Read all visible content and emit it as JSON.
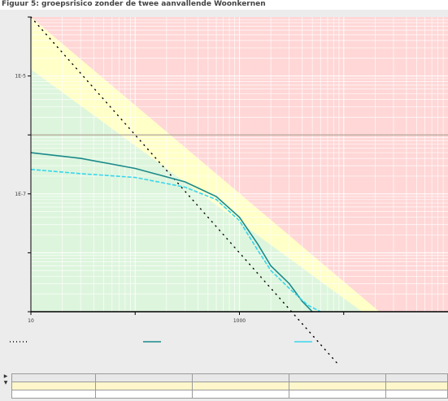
{
  "caption": "Figuur 5: groepsrisico zonder de twee aanvallende Woonkernen",
  "chart_data": {
    "type": "line",
    "title": "",
    "xlabel": "",
    "ylabel": "",
    "xscale": "log",
    "yscale": "log",
    "xlim": [
      1,
      10000
    ],
    "ylim": [
      1e-09,
      0.0001
    ],
    "grid": true,
    "x_ticks": [
      "10",
      "",
      "1000",
      ""
    ],
    "y_ticks": [
      "",
      "1E-5",
      "",
      "1E-7",
      "",
      ""
    ],
    "zones": [
      {
        "name": "green",
        "color": "#ddf5dd"
      },
      {
        "name": "yellow",
        "color": "#ffffc8"
      },
      {
        "name": "red",
        "color": "#ffd7d7"
      }
    ],
    "reference_line": {
      "y": 1e-06,
      "color": "#a89a8a"
    },
    "orientation_line": {
      "color": "#000000",
      "points": [
        [
          1,
          0.0001
        ],
        [
          1000,
          1e-10
        ]
      ]
    },
    "series": [
      {
        "color": "#1a8a8a",
        "points": [
          [
            1,
            5e-07
          ],
          [
            3,
            4e-07
          ],
          [
            10,
            2.7e-07
          ],
          [
            30,
            1.6e-07
          ],
          [
            60,
            9e-08
          ],
          [
            100,
            4e-08
          ],
          [
            150,
            1.4e-08
          ],
          [
            200,
            6e-09
          ],
          [
            300,
            3e-09
          ],
          [
            400,
            1.5e-09
          ],
          [
            500,
            1e-09
          ]
        ]
      },
      {
        "color": "#38d6ec",
        "points": [
          [
            1,
            2.6e-07
          ],
          [
            3,
            2.2e-07
          ],
          [
            10,
            1.9e-07
          ],
          [
            30,
            1.3e-07
          ],
          [
            60,
            8e-08
          ],
          [
            100,
            3.5e-08
          ],
          [
            150,
            1.1e-08
          ],
          [
            200,
            5e-09
          ],
          [
            300,
            2.5e-09
          ],
          [
            450,
            1.3e-09
          ],
          [
            600,
            1e-09
          ]
        ]
      }
    ]
  },
  "table": {
    "headers": [
      "",
      "",
      "",
      "",
      ""
    ],
    "rows": [
      [
        "",
        "",
        "",
        "",
        ""
      ],
      [
        "",
        "",
        "",
        "",
        ""
      ]
    ]
  }
}
